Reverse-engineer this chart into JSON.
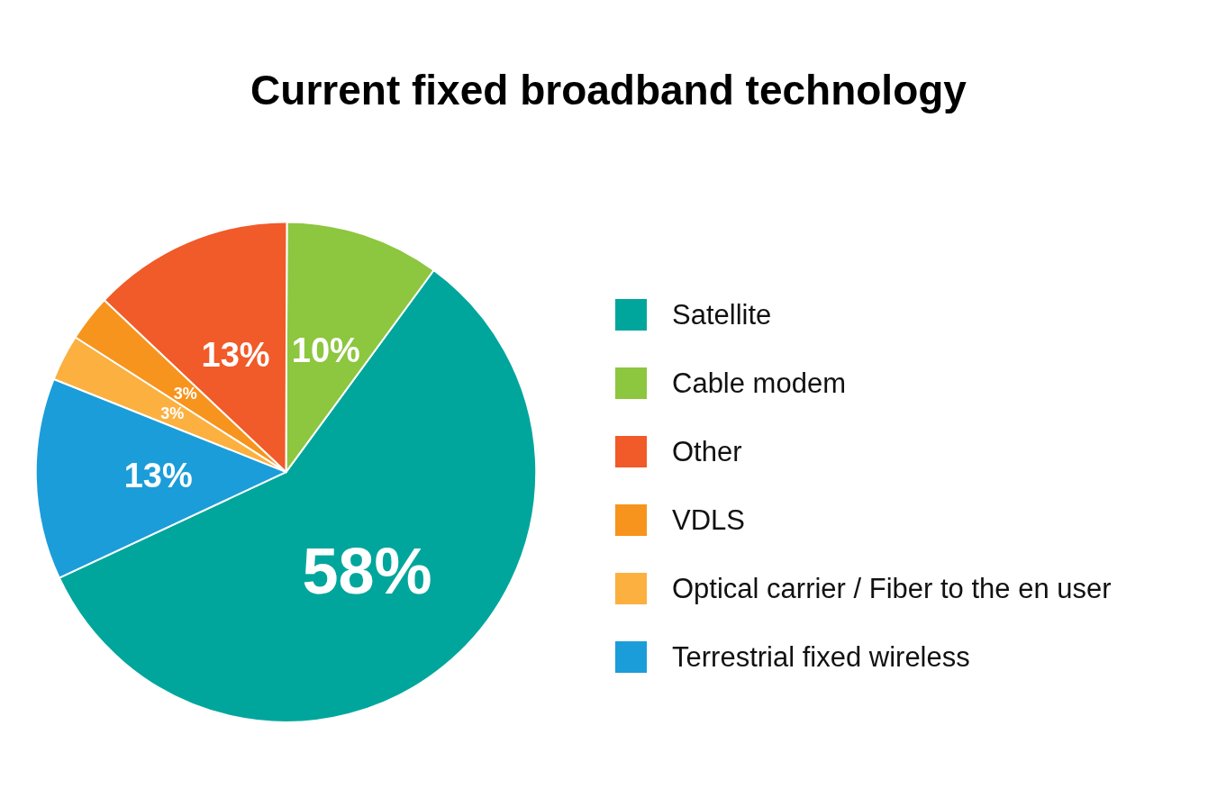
{
  "chart_data": {
    "type": "pie",
    "title": "Current fixed broadband technology",
    "categories": [
      "Satellite",
      "Cable modem",
      "Other",
      "VDLS",
      "Optical carrier / Fiber to the en user",
      "Terrestrial fixed wireless"
    ],
    "values": [
      58,
      10,
      13,
      3,
      3,
      13
    ],
    "value_labels": [
      "58%",
      "10%",
      "13%",
      "3%",
      "3%",
      "13%"
    ],
    "colors": [
      "#00a69c",
      "#8dc63f",
      "#f15a29",
      "#f7941d",
      "#fbb040",
      "#1b9dd9"
    ],
    "legend": "right"
  }
}
